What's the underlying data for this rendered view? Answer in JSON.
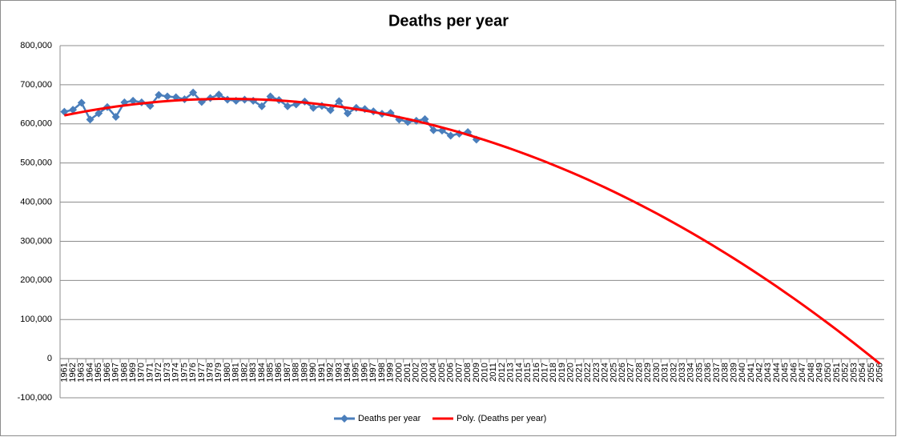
{
  "chart_data": {
    "type": "line",
    "title": "Deaths per year",
    "categories": [
      1961,
      1962,
      1963,
      1964,
      1965,
      1966,
      1967,
      1968,
      1969,
      1970,
      1971,
      1972,
      1973,
      1974,
      1975,
      1976,
      1977,
      1978,
      1979,
      1980,
      1981,
      1982,
      1983,
      1984,
      1985,
      1986,
      1987,
      1988,
      1989,
      1990,
      1991,
      1992,
      1993,
      1994,
      1995,
      1996,
      1997,
      1998,
      1999,
      2000,
      2001,
      2002,
      2003,
      2004,
      2005,
      2006,
      2007,
      2008,
      2009,
      2010,
      2011,
      2012,
      2013,
      2014,
      2015,
      2016,
      2017,
      2018,
      2019,
      2020,
      2021,
      2022,
      2023,
      2024,
      2025,
      2026,
      2027,
      2028,
      2029,
      2030,
      2031,
      2032,
      2033,
      2034,
      2035,
      2036,
      2037,
      2038,
      2039,
      2040,
      2041,
      2042,
      2043,
      2044,
      2045,
      2046,
      2047,
      2048,
      2049,
      2050,
      2051,
      2052,
      2053,
      2054,
      2055,
      2056
    ],
    "series": [
      {
        "name": "Deaths per year",
        "color": "#4a7ebb",
        "marker": "diamond",
        "values": [
          631000,
          636000,
          654000,
          611000,
          627000,
          643000,
          618000,
          655000,
          659000,
          655000,
          646000,
          674000,
          670000,
          668000,
          663000,
          680000,
          656000,
          666000,
          675000,
          662000,
          659000,
          662000,
          659000,
          645000,
          670000,
          661000,
          645000,
          650000,
          657000,
          641000,
          646000,
          635000,
          658000,
          627000,
          641000,
          638000,
          632000,
          626000,
          628000,
          611000,
          605000,
          608000,
          612000,
          584000,
          583000,
          570000,
          575000,
          579000,
          560000,
          null,
          null,
          null,
          null,
          null,
          null,
          null,
          null,
          null,
          null,
          null,
          null,
          null,
          null,
          null,
          null,
          null,
          null,
          null,
          null,
          null,
          null,
          null,
          null,
          null,
          null,
          null,
          null,
          null,
          null,
          null,
          null,
          null,
          null,
          null,
          null,
          null,
          null,
          null,
          null,
          null,
          null,
          null,
          null,
          null,
          null,
          null
        ]
      },
      {
        "name": "Poly. (Deaths per year)",
        "color": "#ff0000",
        "values": [
          621700,
          626000,
          630100,
          634000,
          637600,
          641000,
          644200,
          647100,
          649800,
          652300,
          654500,
          656500,
          658300,
          659800,
          661100,
          662100,
          662900,
          663500,
          663900,
          664000,
          663900,
          663500,
          662900,
          662100,
          661100,
          659800,
          658300,
          656500,
          654500,
          652300,
          649800,
          647100,
          644200,
          641000,
          637600,
          634000,
          630100,
          626000,
          621700,
          617100,
          612300,
          607300,
          602000,
          596500,
          590800,
          584800,
          578600,
          572100,
          565400,
          558500,
          551400,
          544000,
          536400,
          528500,
          520400,
          512100,
          503600,
          494800,
          485700,
          476500,
          467000,
          457300,
          447300,
          437100,
          426700,
          416000,
          405100,
          394000,
          382600,
          371000,
          359200,
          347100,
          334800,
          322200,
          309500,
          296500,
          283200,
          269700,
          256000,
          242100,
          227900,
          213500,
          198800,
          184000,
          168800,
          153500,
          137900,
          122100,
          106000,
          89700,
          73200,
          56400,
          39400,
          22200,
          4800,
          -12900
        ]
      }
    ],
    "ylim": [
      -100000,
      800000
    ],
    "yticks": [
      {
        "value": -100000,
        "label": "-100,000"
      },
      0,
      {
        "value": 100000,
        "label": "100,000"
      },
      {
        "value": 200000,
        "label": "200,000"
      },
      {
        "value": 300000,
        "label": "300,000"
      },
      {
        "value": 400000,
        "label": "400,000"
      },
      {
        "value": 500000,
        "label": "500,000"
      },
      {
        "value": 600000,
        "label": "600,000"
      },
      {
        "value": 700000,
        "label": "700,000"
      },
      {
        "value": 800000,
        "label": "800,000"
      }
    ],
    "grid": true,
    "legend": "bottom"
  }
}
